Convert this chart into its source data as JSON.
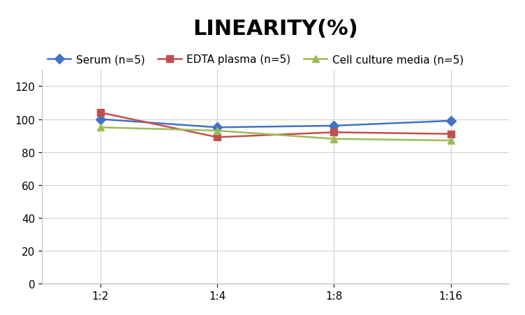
{
  "title": "LINEARITY(%)",
  "x_labels": [
    "1:2",
    "1:4",
    "1:8",
    "1:16"
  ],
  "x_positions": [
    0,
    1,
    2,
    3
  ],
  "series": [
    {
      "label": "Serum (n=5)",
      "color": "#4472C4",
      "marker": "D",
      "values": [
        100,
        95,
        96,
        99
      ]
    },
    {
      "label": "EDTA plasma (n=5)",
      "color": "#C0504D",
      "marker": "s",
      "values": [
        104,
        89,
        92,
        91
      ]
    },
    {
      "label": "Cell culture media (n=5)",
      "color": "#9BBB59",
      "marker": "^",
      "values": [
        95,
        93,
        88,
        87
      ]
    }
  ],
  "ylim": [
    0,
    130
  ],
  "yticks": [
    0,
    20,
    40,
    60,
    80,
    100,
    120
  ],
  "background_color": "#FFFFFF",
  "grid_color": "#D0D0D0",
  "title_fontsize": 22,
  "legend_fontsize": 11,
  "tick_fontsize": 11
}
